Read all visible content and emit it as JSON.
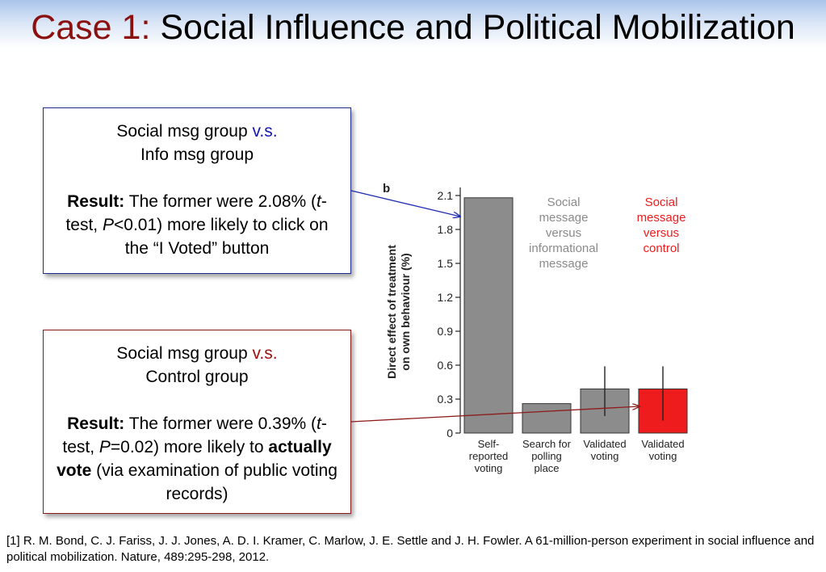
{
  "title": {
    "case_label": "Case 1:",
    "text": "Social Influence and Political Mobilization"
  },
  "box1": {
    "line1": "Social msg group",
    "vs": "v.s.",
    "line2": "Info msg group",
    "result_label": "Result:",
    "result_a": "The former were 2.08% (",
    "t": "t",
    "result_b": "-test, ",
    "p": "P",
    "result_c": "<0.01) more likely to click on the “I Voted” button"
  },
  "box2": {
    "line1": "Social msg group",
    "vs": "v.s.",
    "line2": "Control group",
    "result_label": "Result:",
    "result_a": "The former were 0.39% (",
    "t": "t",
    "result_b": "-test, ",
    "p": "P",
    "result_c": "=0.02) more likely to ",
    "bold": "actually vote",
    "result_d": " (via examination of public voting records)"
  },
  "chart_data": {
    "type": "bar",
    "panel_label": "b",
    "ylabel_line1": "Direct effect of treatment",
    "ylabel_line2": "on own behaviour (%)",
    "ylim": [
      0,
      2.2
    ],
    "yticks": [
      "0",
      "0.3",
      "0.6",
      "0.9",
      "1.2",
      "1.5",
      "1.8",
      "2.1"
    ],
    "ytick_values": [
      0,
      0.3,
      0.6,
      0.9,
      1.2,
      1.5,
      1.8,
      2.1
    ],
    "categories": [
      [
        "Self-",
        "reported",
        "voting"
      ],
      [
        "Search for",
        "polling",
        "place"
      ],
      [
        "Validated",
        "voting"
      ],
      [
        "Validated",
        "voting"
      ]
    ],
    "values": [
      2.08,
      0.26,
      0.39,
      0.39
    ],
    "error_low": [
      null,
      null,
      0.15,
      0.11
    ],
    "error_high": [
      null,
      null,
      0.59,
      0.59
    ],
    "bar_colors": [
      "#8c8c8c",
      "#8c8c8c",
      "#8c8c8c",
      "#ee1c1c"
    ],
    "legend_gray": [
      "Social",
      "message",
      "versus",
      "informational",
      "message"
    ],
    "legend_red": [
      "Social",
      "message",
      "versus",
      "control"
    ],
    "legend_gray_color": "#8a8a8a",
    "legend_red_color": "#ee1c1c",
    "grid": false
  },
  "footnote": "[1] R. M. Bond, C. J. Fariss, J. J. Jones, A. D. I. Kramer, C. Marlow, J. E. Settle and J. H. Fowler. A 61-million-person experiment in social influence and political mobilization. Nature, 489:295-298, 2012.",
  "colors": {
    "accent_red": "#8b1111",
    "blue": "#1616b0",
    "red_vs": "#a01010",
    "arrow_blue": "#1f2db0",
    "arrow_red": "#8c1b1b"
  }
}
